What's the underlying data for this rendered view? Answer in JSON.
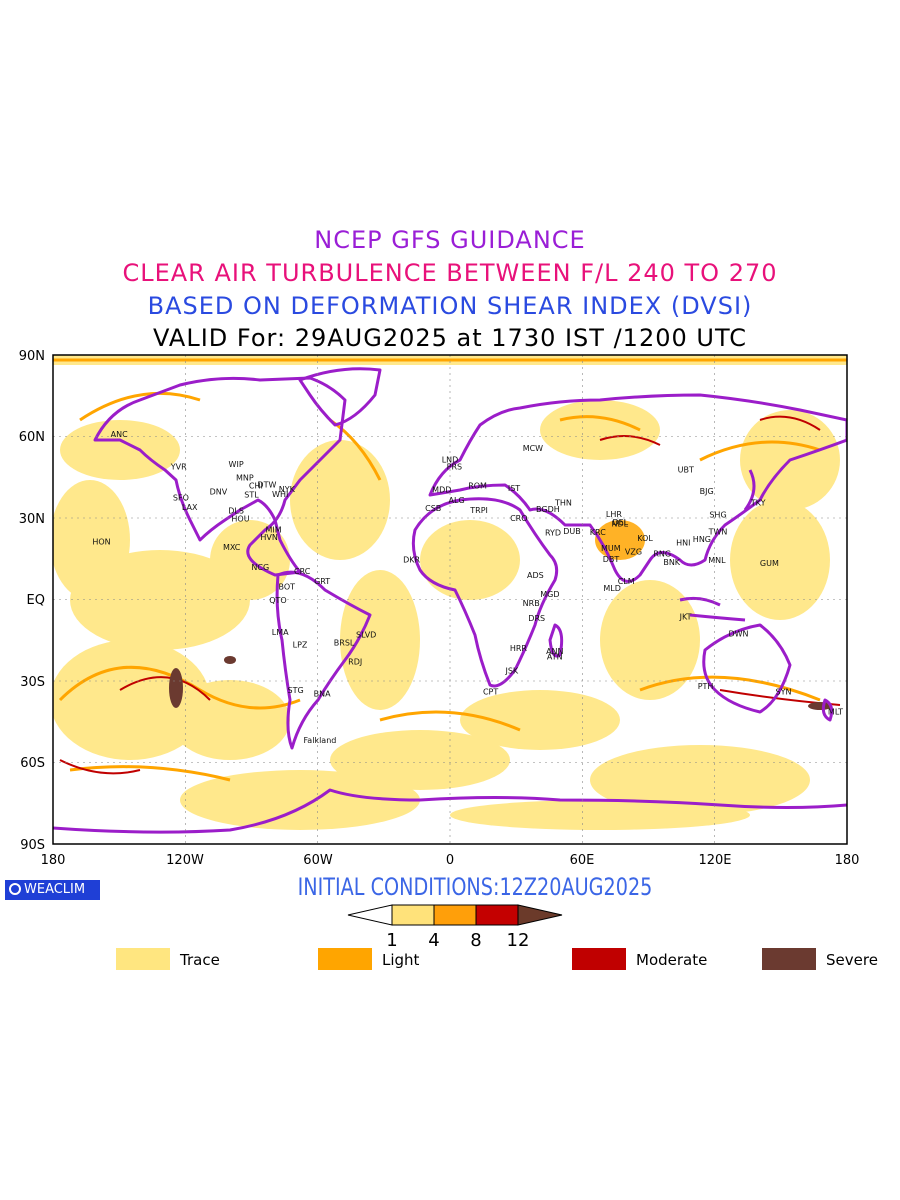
{
  "header": {
    "line1": "NCEP GFS GUIDANCE",
    "line2": "CLEAR AIR TURBULENCE BETWEEN F/L 240 TO 270",
    "line3": "BASED ON DEFORMATION SHEAR INDEX (DVSI)",
    "line4": "VALID For: 29AUG2025 at 1730 IST /1200 UTC"
  },
  "map": {
    "lat_labels": [
      "90N",
      "60N",
      "30N",
      "EQ",
      "30S",
      "60S",
      "90S"
    ],
    "lon_labels": [
      "180",
      "120W",
      "60W",
      "0",
      "60E",
      "120E",
      "180"
    ],
    "coastline_color": "#9b1dc9",
    "stations": [
      {
        "code": "ANC",
        "lon": -150,
        "lat": 61
      },
      {
        "code": "YVR",
        "lon": -123,
        "lat": 49
      },
      {
        "code": "SFO",
        "lon": -122,
        "lat": 37.6
      },
      {
        "code": "LAX",
        "lon": -118,
        "lat": 34
      },
      {
        "code": "DNV",
        "lon": -105,
        "lat": 39.7
      },
      {
        "code": "WIP",
        "lon": -97,
        "lat": 49.9
      },
      {
        "code": "MNP",
        "lon": -93,
        "lat": 45
      },
      {
        "code": "CHI",
        "lon": -88,
        "lat": 41.9
      },
      {
        "code": "DTW",
        "lon": -83,
        "lat": 42.3
      },
      {
        "code": "NYK",
        "lon": -74,
        "lat": 40.7
      },
      {
        "code": "WHI",
        "lon": -77,
        "lat": 38.9
      },
      {
        "code": "STL",
        "lon": -90,
        "lat": 38.6
      },
      {
        "code": "DLS",
        "lon": -97,
        "lat": 32.8
      },
      {
        "code": "HOU",
        "lon": -95,
        "lat": 29.8
      },
      {
        "code": "MIM",
        "lon": -80,
        "lat": 25.8
      },
      {
        "code": "HVN",
        "lon": -82,
        "lat": 23
      },
      {
        "code": "MXC",
        "lon": -99,
        "lat": 19.4
      },
      {
        "code": "HON",
        "lon": -158,
        "lat": 21.3
      },
      {
        "code": "NCG",
        "lon": -86,
        "lat": 12
      },
      {
        "code": "CRC",
        "lon": -67,
        "lat": 10.5
      },
      {
        "code": "BOT",
        "lon": -74,
        "lat": 4.7
      },
      {
        "code": "GRT",
        "lon": -58,
        "lat": 6.8
      },
      {
        "code": "QTO",
        "lon": -78,
        "lat": -0.2
      },
      {
        "code": "LMA",
        "lon": -77,
        "lat": -12
      },
      {
        "code": "LPZ",
        "lon": -68,
        "lat": -16.5
      },
      {
        "code": "BRSL",
        "lon": -48,
        "lat": -15.8
      },
      {
        "code": "SLVD",
        "lon": -38,
        "lat": -12.9
      },
      {
        "code": "RDJ",
        "lon": -43,
        "lat": -22.9
      },
      {
        "code": "STG",
        "lon": -70,
        "lat": -33.4
      },
      {
        "code": "BNA",
        "lon": -58,
        "lat": -34.6
      },
      {
        "code": "Falkland",
        "lon": -59,
        "lat": -51.7
      },
      {
        "code": "LND",
        "lon": 0,
        "lat": 51.5
      },
      {
        "code": "PRS",
        "lon": 2,
        "lat": 49
      },
      {
        "code": "MCW",
        "lon": 37.6,
        "lat": 55.8
      },
      {
        "code": "MDD",
        "lon": -3.7,
        "lat": 40.4
      },
      {
        "code": "ALG",
        "lon": 3,
        "lat": 36.7
      },
      {
        "code": "CSB",
        "lon": -7.6,
        "lat": 33.6
      },
      {
        "code": "ROM",
        "lon": 12.5,
        "lat": 41.9
      },
      {
        "code": "IST",
        "lon": 29,
        "lat": 41
      },
      {
        "code": "TRPI",
        "lon": 13.2,
        "lat": 32.9
      },
      {
        "code": "CRO",
        "lon": 31.2,
        "lat": 30
      },
      {
        "code": "BGDH",
        "lon": 44.4,
        "lat": 33.3
      },
      {
        "code": "THN",
        "lon": 51.4,
        "lat": 35.7
      },
      {
        "code": "RYD",
        "lon": 46.7,
        "lat": 24.7
      },
      {
        "code": "DUB",
        "lon": 55.3,
        "lat": 25.3
      },
      {
        "code": "KRC",
        "lon": 67,
        "lat": 24.9
      },
      {
        "code": "DEL",
        "lon": 77.2,
        "lat": 28.6
      },
      {
        "code": "LHR",
        "lon": 74.3,
        "lat": 31.5
      },
      {
        "code": "NDL",
        "lon": 77,
        "lat": 28
      },
      {
        "code": "MUM",
        "lon": 72.9,
        "lat": 19
      },
      {
        "code": "VZG",
        "lon": 83.2,
        "lat": 17.7
      },
      {
        "code": "KOL",
        "lon": 88.4,
        "lat": 22.6
      },
      {
        "code": "DBT",
        "lon": 73,
        "lat": 15
      },
      {
        "code": "CLM",
        "lon": 79.9,
        "lat": 6.9
      },
      {
        "code": "MLD",
        "lon": 73.5,
        "lat": 4.2
      },
      {
        "code": "RNG",
        "lon": 96.2,
        "lat": 16.9
      },
      {
        "code": "BNK",
        "lon": 100.5,
        "lat": 13.8
      },
      {
        "code": "HNI",
        "lon": 105.8,
        "lat": 21
      },
      {
        "code": "HNG",
        "lon": 114.2,
        "lat": 22.3
      },
      {
        "code": "MNL",
        "lon": 121,
        "lat": 14.6
      },
      {
        "code": "GUM",
        "lon": 144.8,
        "lat": 13.5
      },
      {
        "code": "SHG",
        "lon": 121.5,
        "lat": 31.2
      },
      {
        "code": "BJG",
        "lon": 116.4,
        "lat": 39.9
      },
      {
        "code": "TKY",
        "lon": 139.7,
        "lat": 35.7
      },
      {
        "code": "TWN",
        "lon": 121.5,
        "lat": 25
      },
      {
        "code": "UBT",
        "lon": 106.9,
        "lat": 47.9
      },
      {
        "code": "JKT",
        "lon": 106.8,
        "lat": -6.2
      },
      {
        "code": "DWN",
        "lon": 130.8,
        "lat": -12.5
      },
      {
        "code": "PTH",
        "lon": 115.9,
        "lat": -31.9
      },
      {
        "code": "SYN",
        "lon": 151.2,
        "lat": -33.9
      },
      {
        "code": "MLT",
        "lon": 174.8,
        "lat": -41.3
      },
      {
        "code": "ADS",
        "lon": 38.7,
        "lat": 9
      },
      {
        "code": "NRB",
        "lon": 36.8,
        "lat": -1.3
      },
      {
        "code": "DRS",
        "lon": 39.3,
        "lat": -6.8
      },
      {
        "code": "MGD",
        "lon": 45.3,
        "lat": 2
      },
      {
        "code": "HRR",
        "lon": 31,
        "lat": -17.8
      },
      {
        "code": "ANN",
        "lon": 47.5,
        "lat": -18.9
      },
      {
        "code": "ATN",
        "lon": 47.5,
        "lat": -21
      },
      {
        "code": "JSK",
        "lon": 28,
        "lat": -26.2
      },
      {
        "code": "CPT",
        "lon": 18.4,
        "lat": -33.9
      },
      {
        "code": "DKR",
        "lon": -17.4,
        "lat": 14.7
      }
    ]
  },
  "branding": {
    "logo_text": "WEACLIM"
  },
  "footer": {
    "initial_conditions": "INITIAL  CONDITIONS:12Z20AUG2025"
  },
  "colorbar": {
    "ticks": [
      "1",
      "4",
      "8",
      "12"
    ],
    "colors": [
      "#ffffff",
      "#ffe27a",
      "#ff9f0a",
      "#c40000",
      "#6b3a2a"
    ]
  },
  "legend": [
    {
      "label": "Trace",
      "color": "#ffe680"
    },
    {
      "label": "Light",
      "color": "#ffa500"
    },
    {
      "label": "Moderate",
      "color": "#c00000"
    },
    {
      "label": "Severe",
      "color": "#6b3a30"
    }
  ]
}
